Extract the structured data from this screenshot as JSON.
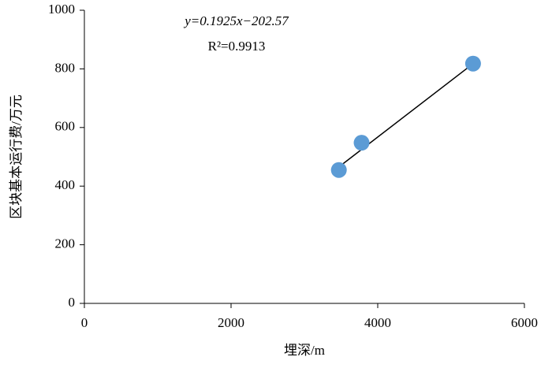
{
  "chart_data": {
    "type": "scatter",
    "x_label": "埋深/m",
    "y_label": "区块基本运行费/万元",
    "series": [
      {
        "name": "data",
        "color": "#5b9bd5",
        "x": [
          3470,
          3780,
          5300
        ],
        "values": [
          455,
          548,
          818
        ]
      }
    ],
    "trendline": {
      "slope": 0.1925,
      "intercept": -202.57,
      "color": "#000000"
    },
    "annotations": [
      "y=0.1925x−202.57",
      "R²=0.9913"
    ],
    "xlim": [
      0,
      6000
    ],
    "xticks": [
      0,
      2000,
      4000,
      6000
    ],
    "ylim": [
      0,
      1000
    ],
    "yticks": [
      0,
      200,
      400,
      600,
      800,
      1000
    ],
    "grid": false
  }
}
